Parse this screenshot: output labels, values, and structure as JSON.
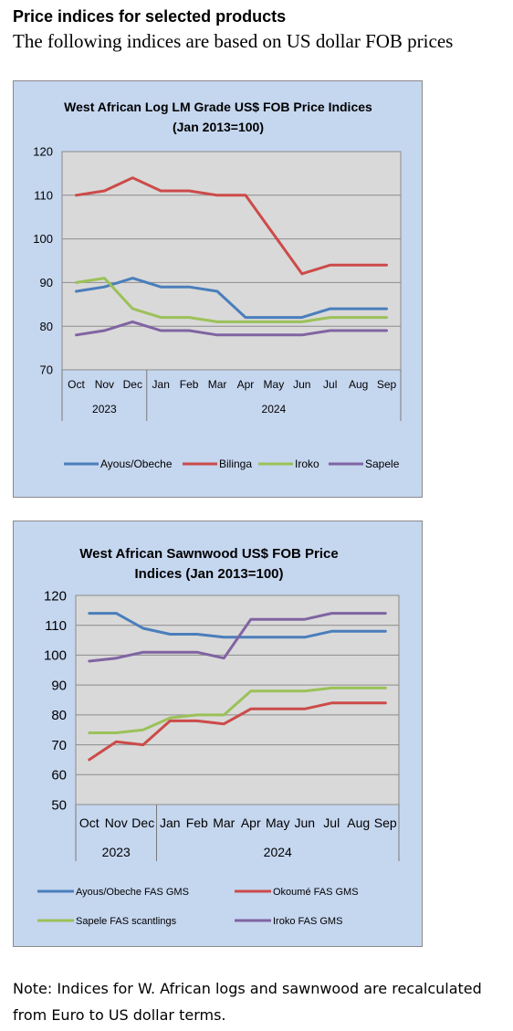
{
  "header": {
    "title": "Price indices for selected products",
    "subtitle": "The following indices are based on US dollar FOB prices"
  },
  "colors": {
    "panel_bg": "#c5d6ef",
    "plot_bg": "#d9d9d9",
    "blue": "#4a7ebb",
    "red": "#cc4b49",
    "green": "#9bc159",
    "purple": "#8064a2"
  },
  "chart_data": [
    {
      "type": "line",
      "title_lines": [
        "West African Log LM Grade US$ FOB Price Indices",
        "(Jan 2013=100)"
      ],
      "categories": [
        "Oct",
        "Nov",
        "Dec",
        "Jan",
        "Feb",
        "Mar",
        "Apr",
        "May",
        "Jun",
        "Jul",
        "Aug",
        "Sep"
      ],
      "year_groups": [
        {
          "label": "2023",
          "count": 3
        },
        {
          "label": "2024",
          "count": 9
        }
      ],
      "ylim": [
        70,
        120
      ],
      "yticks": [
        "70",
        "80",
        "90",
        "100",
        "110",
        "120"
      ],
      "grid": true,
      "legend_position": "bottom",
      "series": [
        {
          "name": "Ayous/Obeche",
          "color": "#4a7ebb",
          "values": [
            88,
            89,
            91,
            89,
            89,
            88,
            82,
            82,
            82,
            84,
            84,
            84
          ]
        },
        {
          "name": "Bilinga",
          "color": "#cc4b49",
          "values": [
            110,
            111,
            114,
            111,
            111,
            110,
            110,
            101,
            92,
            94,
            94,
            94
          ]
        },
        {
          "name": "Iroko",
          "color": "#9bc159",
          "values": [
            90,
            91,
            84,
            82,
            82,
            81,
            81,
            81,
            81,
            82,
            82,
            82
          ]
        },
        {
          "name": "Sapele",
          "color": "#8064a2",
          "values": [
            78,
            79,
            81,
            79,
            79,
            78,
            78,
            78,
            78,
            79,
            79,
            79
          ]
        }
      ]
    },
    {
      "type": "line",
      "title_lines": [
        "West African Sawnwood US$ FOB Price",
        "Indices (Jan 2013=100)"
      ],
      "categories": [
        "Oct",
        "Nov",
        "Dec",
        "Jan",
        "Feb",
        "Mar",
        "Apr",
        "May",
        "Jun",
        "Jul",
        "Aug",
        "Sep"
      ],
      "year_groups": [
        {
          "label": "2023",
          "count": 3
        },
        {
          "label": "2024",
          "count": 9
        }
      ],
      "ylim": [
        50,
        120
      ],
      "yticks": [
        "50",
        "60",
        "70",
        "80",
        "90",
        "100",
        "110",
        "120"
      ],
      "grid": true,
      "legend_position": "bottom",
      "series": [
        {
          "name": "Ayous/Obeche  FAS GMS",
          "color": "#4a7ebb",
          "values": [
            114,
            114,
            109,
            107,
            107,
            106,
            106,
            106,
            106,
            108,
            108,
            108
          ]
        },
        {
          "name": "Okoumé  FAS GMS",
          "color": "#cc4b49",
          "values": [
            65,
            71,
            70,
            78,
            78,
            77,
            82,
            82,
            82,
            84,
            84,
            84
          ]
        },
        {
          "name": "Sapele  FAS scantlings",
          "color": "#9bc159",
          "values": [
            74,
            74,
            75,
            79,
            80,
            80,
            88,
            88,
            88,
            89,
            89,
            89
          ]
        },
        {
          "name": "Iroko FAS GMS",
          "color": "#8064a2",
          "values": [
            98,
            99,
            101,
            101,
            101,
            99,
            112,
            112,
            112,
            114,
            114,
            114
          ]
        }
      ]
    }
  ],
  "note": "Note: Indices for W. African logs and sawnwood are recalculated from Euro to US dollar terms."
}
